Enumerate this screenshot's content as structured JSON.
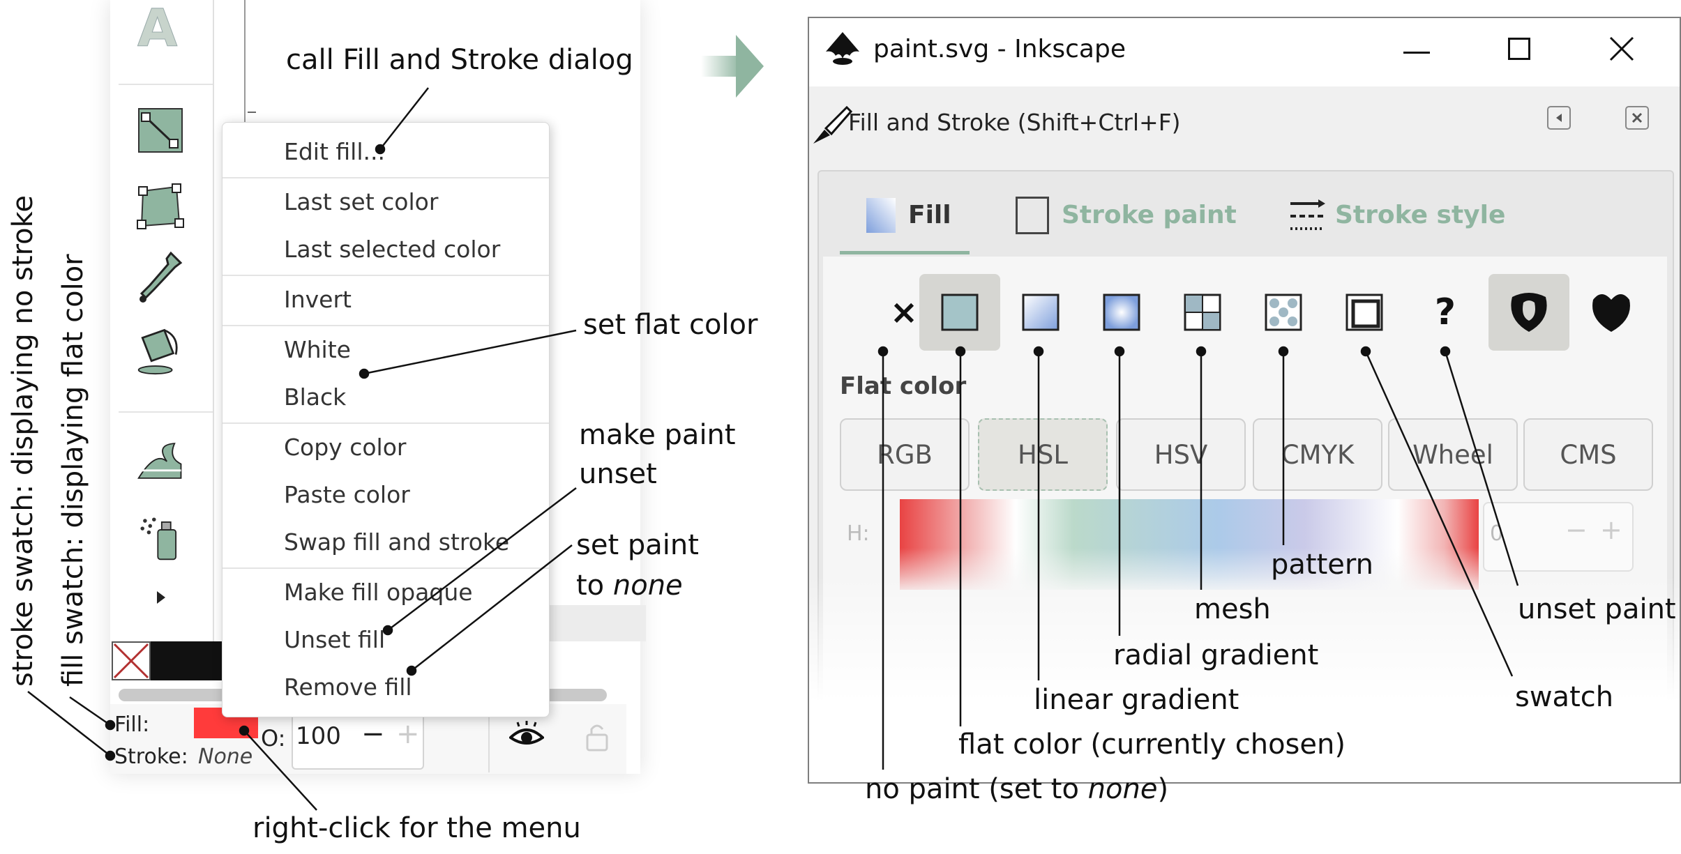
{
  "colors": {
    "fill_red": "#ff3b3b",
    "tab_green": "#8fb5a0",
    "arrow_green": "#8fb5a0",
    "panel_gray": "#ececec"
  },
  "left": {
    "icons": [
      "text-tool-icon",
      "node-tool-icon",
      "tweak-tool-icon",
      "dropper-tool-icon",
      "paint-bucket-icon",
      "spray-tool-icon",
      "spray-can-icon",
      "expand-arrow-icon"
    ],
    "menu": {
      "edit_fill": "Edit fill...",
      "last_set_color": "Last set color",
      "last_selected_color": "Last selected color",
      "invert": "Invert",
      "white": "White",
      "black": "Black",
      "copy_color": "Copy color",
      "paste_color": "Paste color",
      "swap_fill_stroke": "Swap fill and stroke",
      "make_fill_opaque": "Make fill opaque",
      "unset_fill": "Unset fill",
      "remove_fill": "Remove fill"
    },
    "status": {
      "fill_label": "Fill:",
      "stroke_label": "Stroke:",
      "stroke_value": "None",
      "opacity_label": "O:",
      "opacity_value": "100",
      "minus": "−",
      "plus": "+"
    }
  },
  "dialog": {
    "window_title": "paint.svg - Inkscape",
    "panel_title": "Fill and Stroke (Shift+Ctrl+F)",
    "tabs": {
      "fill": "Fill",
      "stroke_paint": "Stroke paint",
      "stroke_style": "Stroke style"
    },
    "paint_buttons": [
      "no-paint",
      "flat-color",
      "linear-gradient",
      "radial-gradient",
      "mesh",
      "pattern",
      "swatch",
      "unset-paint",
      "nonzero-fill-rule",
      "evenodd-fill-rule"
    ],
    "unset_glyph": "?",
    "x_glyph": "×",
    "section_title": "Flat color",
    "modes": [
      "RGB",
      "HSL",
      "HSV",
      "CMYK",
      "Wheel",
      "CMS"
    ],
    "h_label": "H:",
    "h_value": "0",
    "minus": "−",
    "plus": "+"
  },
  "annotations": {
    "call_dialog": "call Fill and Stroke dialog",
    "set_flat": "set flat color",
    "make_unset_1": "make paint",
    "make_unset_2": "unset",
    "set_none_1": "set paint",
    "set_none_2": "to",
    "set_none_italic": "none",
    "right_click": "right-click for the menu",
    "stroke_swatch": "stroke swatch: displaying no stroke",
    "fill_swatch": "fill swatch: displaying flat color",
    "pattern": "pattern",
    "mesh": "mesh",
    "radial": "radial gradient",
    "linear": "linear gradient",
    "flat_chosen": "flat color (currently chosen)",
    "no_paint_pre": "no paint (set to",
    "no_paint_italic": "none",
    "no_paint_post": ")",
    "unset_paint": "unset paint",
    "swatch": "swatch"
  }
}
